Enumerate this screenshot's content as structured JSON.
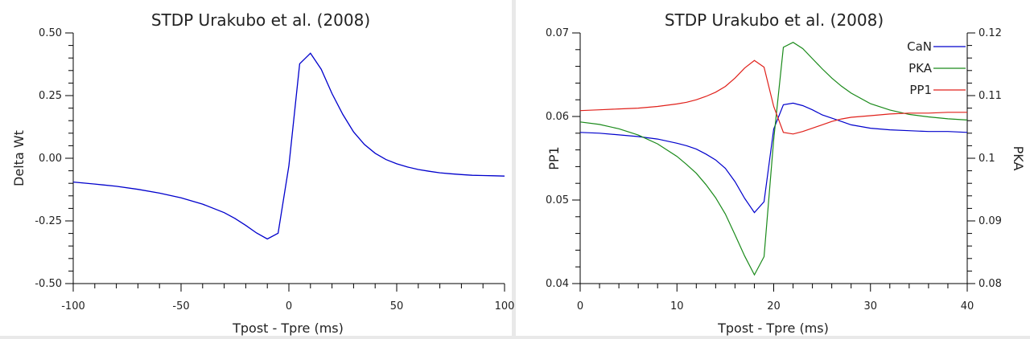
{
  "chart_data": [
    {
      "type": "line",
      "title": "STDP Urakubo et al. (2008)",
      "xlabel": "Tpost - Tpre (ms)",
      "ylabel": "Delta Wt",
      "xlim": [
        -100,
        100
      ],
      "ylim": [
        -0.5,
        0.5
      ],
      "xticks": [
        "-100",
        "-50",
        "0",
        "50",
        "100"
      ],
      "yticks": [
        "-0.50",
        "-0.25",
        "0.00",
        "0.25",
        "0.50"
      ],
      "grid": false,
      "series": [
        {
          "color": "#0000cc",
          "x": [
            -100,
            -90,
            -80,
            -70,
            -60,
            -50,
            -40,
            -30,
            -25,
            -20,
            -15,
            -10,
            -5,
            0,
            5,
            10,
            15,
            20,
            25,
            30,
            35,
            40,
            45,
            50,
            55,
            60,
            65,
            70,
            75,
            80,
            85,
            90,
            95,
            100
          ],
          "y": [
            -0.095,
            -0.103,
            -0.112,
            -0.124,
            -0.139,
            -0.158,
            -0.183,
            -0.217,
            -0.24,
            -0.268,
            -0.298,
            -0.322,
            -0.299,
            -0.03,
            0.377,
            0.419,
            0.355,
            0.258,
            0.175,
            0.105,
            0.055,
            0.02,
            -0.005,
            -0.022,
            -0.035,
            -0.045,
            -0.052,
            -0.058,
            -0.062,
            -0.065,
            -0.068,
            -0.069,
            -0.07,
            -0.071
          ]
        }
      ]
    },
    {
      "type": "line",
      "title": "STDP Urakubo et al. (2008)",
      "xlabel": "Tpost - Tpre (ms)",
      "ylabel": "PP1",
      "y2label": "PKA",
      "xlim": [
        0,
        40
      ],
      "ylim": [
        0.04,
        0.07
      ],
      "y2lim": [
        0.08,
        0.12
      ],
      "xticks": [
        "0",
        "10",
        "20",
        "30",
        "40"
      ],
      "yticks": [
        "0.04",
        "0.05",
        "0.06",
        "0.07"
      ],
      "y2ticks": [
        "0.08",
        "0.09",
        "0.1",
        "0.11",
        "0.12"
      ],
      "legend_position": "top-right",
      "grid": false,
      "series": [
        {
          "name": "CaN",
          "color": "#0000cc",
          "axis": "left",
          "x": [
            0,
            2,
            4,
            6,
            8,
            10,
            11,
            12,
            13,
            14,
            15,
            16,
            17,
            18,
            19,
            20,
            21,
            22,
            23,
            24,
            25,
            26,
            27,
            28,
            30,
            32,
            34,
            36,
            38,
            40
          ],
          "y": [
            0.0581,
            0.058,
            0.0578,
            0.0576,
            0.0573,
            0.0568,
            0.0565,
            0.0561,
            0.0555,
            0.0548,
            0.0538,
            0.0522,
            0.0502,
            0.0485,
            0.0498,
            0.0585,
            0.0614,
            0.0616,
            0.0613,
            0.0608,
            0.0602,
            0.0598,
            0.0594,
            0.059,
            0.0586,
            0.0584,
            0.0583,
            0.0582,
            0.0582,
            0.0581
          ]
        },
        {
          "name": "PKA",
          "color": "#1a8a1a",
          "axis": "right",
          "x": [
            0,
            2,
            4,
            6,
            8,
            10,
            11,
            12,
            13,
            14,
            15,
            16,
            17,
            18,
            19,
            20,
            21,
            22,
            23,
            24,
            25,
            26,
            27,
            28,
            30,
            32,
            34,
            36,
            38,
            40
          ],
          "y": [
            0.1058,
            0.1054,
            0.1047,
            0.1037,
            0.1023,
            0.1003,
            0.099,
            0.0976,
            0.0958,
            0.0937,
            0.0911,
            0.0878,
            0.0844,
            0.0814,
            0.0843,
            0.103,
            0.1177,
            0.1185,
            0.1175,
            0.1159,
            0.1143,
            0.1128,
            0.1115,
            0.1104,
            0.1087,
            0.1077,
            0.107,
            0.1066,
            0.1063,
            0.1061
          ]
        },
        {
          "name": "PP1",
          "color": "#e0201a",
          "axis": "left",
          "x": [
            0,
            2,
            4,
            6,
            8,
            10,
            11,
            12,
            13,
            14,
            15,
            16,
            17,
            18,
            19,
            20,
            21,
            22,
            23,
            24,
            25,
            26,
            27,
            28,
            30,
            32,
            34,
            36,
            38,
            40
          ],
          "y": [
            0.0607,
            0.0608,
            0.0609,
            0.061,
            0.0612,
            0.0615,
            0.0617,
            0.062,
            0.0624,
            0.0629,
            0.0636,
            0.0646,
            0.0658,
            0.0667,
            0.0659,
            0.0612,
            0.0581,
            0.0579,
            0.0582,
            0.0586,
            0.059,
            0.0594,
            0.0597,
            0.0599,
            0.0601,
            0.0603,
            0.0604,
            0.0604,
            0.0605,
            0.0605
          ]
        }
      ]
    }
  ]
}
